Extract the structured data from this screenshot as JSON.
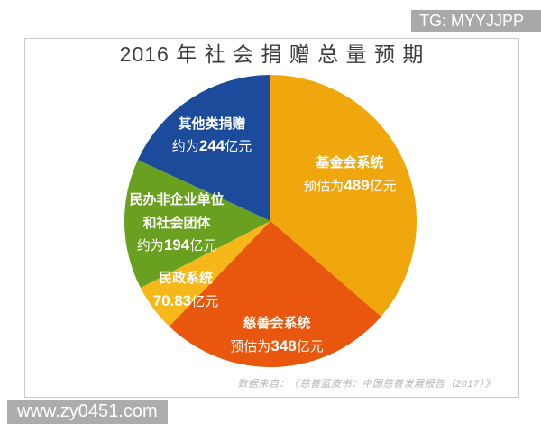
{
  "overlays": {
    "tg_badge": {
      "text": "TG: MYYJJPP",
      "bg": "#A9A9A9",
      "fg": "#FFFFFF"
    },
    "watermark": {
      "text": "www.zy0451.com",
      "bg": "#ACACAC",
      "fg": "#FFFFFF"
    }
  },
  "chart": {
    "title": "2016 年 社 会 捐 赠 总 量 预 期",
    "source_note": "数据来自：《慈善蓝皮书：中国慈善发展报告（2017）》",
    "labels": {
      "foundation": {
        "name": "基金会系统",
        "prefix": "预估为",
        "num": "489",
        "suffix": "亿元"
      },
      "charity": {
        "name": "慈善会系统",
        "prefix": "预估为",
        "num": "348",
        "suffix": "亿元"
      },
      "civil": {
        "name": "民政系统",
        "prefix": "",
        "num": "70.83",
        "suffix": "亿元"
      },
      "private": {
        "name_line1": "民办非企业单位",
        "name_line2": "和社会团体",
        "prefix": "约为",
        "num": "194",
        "suffix": "亿元"
      },
      "other": {
        "name": "其他类捐赠",
        "prefix": "约为",
        "num": "244",
        "suffix": "亿元"
      }
    }
  },
  "chart_data": {
    "type": "pie",
    "title": "2016 年 社 会 捐 赠 总 量 预 期",
    "unit": "亿元",
    "start_angle_deg": 0,
    "direction": "clockwise",
    "legend_position": "labels-on-slices",
    "source": "数据来自：《慈善蓝皮书：中国慈善发展报告（2017）》",
    "slices": [
      {
        "id": "foundation",
        "label": "基金会系统",
        "value": 489,
        "value_text": "预估为489亿元",
        "color": "#F0A70D"
      },
      {
        "id": "charity",
        "label": "慈善会系统",
        "value": 348,
        "value_text": "预估为348亿元",
        "color": "#E9560D"
      },
      {
        "id": "civil",
        "label": "民政系统",
        "value": 70.83,
        "value_text": "70.83亿元",
        "color": "#F6B818"
      },
      {
        "id": "private",
        "label": "民办非企业单位和社会团体",
        "value": 194,
        "value_text": "约为194亿元",
        "color": "#6AA01F"
      },
      {
        "id": "other",
        "label": "其他类捐赠",
        "value": 244,
        "value_text": "约为244亿元",
        "color": "#1C4B9B"
      }
    ]
  }
}
